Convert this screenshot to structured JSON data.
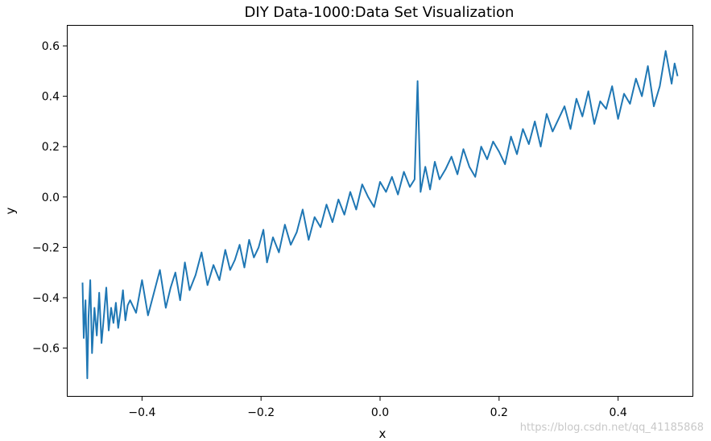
{
  "chart_data": {
    "type": "line",
    "title": "DIY Data-1000:Data Set Visualization",
    "xlabel": "x",
    "ylabel": "y",
    "xlim": [
      -0.525,
      0.525
    ],
    "ylim": [
      -0.79,
      0.68
    ],
    "x_ticks": [
      {
        "value": -0.4,
        "label": "−0.4"
      },
      {
        "value": -0.2,
        "label": "−0.2"
      },
      {
        "value": 0.0,
        "label": "0.0"
      },
      {
        "value": 0.2,
        "label": "0.2"
      },
      {
        "value": 0.4,
        "label": "0.4"
      }
    ],
    "y_ticks": [
      {
        "value": -0.6,
        "label": "−0.6"
      },
      {
        "value": -0.4,
        "label": "−0.4"
      },
      {
        "value": -0.2,
        "label": "−0.2"
      },
      {
        "value": 0.0,
        "label": "0.0"
      },
      {
        "value": 0.2,
        "label": "0.2"
      },
      {
        "value": 0.4,
        "label": "0.4"
      },
      {
        "value": 0.6,
        "label": "0.6"
      }
    ],
    "grid": false,
    "legend": "none",
    "series": [
      {
        "color": "#1f77b4",
        "x": [
          -0.5,
          -0.498,
          -0.495,
          -0.492,
          -0.49,
          -0.487,
          -0.484,
          -0.48,
          -0.476,
          -0.472,
          -0.468,
          -0.464,
          -0.46,
          -0.456,
          -0.452,
          -0.448,
          -0.444,
          -0.44,
          -0.436,
          -0.432,
          -0.428,
          -0.424,
          -0.42,
          -0.41,
          -0.4,
          -0.39,
          -0.38,
          -0.37,
          -0.36,
          -0.352,
          -0.344,
          -0.336,
          -0.328,
          -0.32,
          -0.31,
          -0.3,
          -0.29,
          -0.28,
          -0.27,
          -0.26,
          -0.252,
          -0.244,
          -0.236,
          -0.228,
          -0.22,
          -0.212,
          -0.204,
          -0.196,
          -0.19,
          -0.18,
          -0.17,
          -0.16,
          -0.15,
          -0.14,
          -0.13,
          -0.12,
          -0.11,
          -0.1,
          -0.09,
          -0.08,
          -0.07,
          -0.06,
          -0.05,
          -0.04,
          -0.03,
          -0.02,
          -0.01,
          0.0,
          0.01,
          0.02,
          0.03,
          0.04,
          0.05,
          0.058,
          0.063,
          0.068,
          0.076,
          0.084,
          0.092,
          0.1,
          0.11,
          0.12,
          0.13,
          0.14,
          0.15,
          0.16,
          0.17,
          0.18,
          0.19,
          0.2,
          0.21,
          0.22,
          0.23,
          0.24,
          0.25,
          0.26,
          0.27,
          0.28,
          0.29,
          0.3,
          0.31,
          0.32,
          0.33,
          0.34,
          0.35,
          0.36,
          0.37,
          0.38,
          0.39,
          0.4,
          0.41,
          0.42,
          0.43,
          0.44,
          0.45,
          0.46,
          0.47,
          0.48,
          0.49,
          0.495,
          0.5
        ],
        "y": [
          -0.34,
          -0.56,
          -0.41,
          -0.72,
          -0.48,
          -0.33,
          -0.62,
          -0.44,
          -0.55,
          -0.38,
          -0.58,
          -0.47,
          -0.36,
          -0.53,
          -0.44,
          -0.5,
          -0.42,
          -0.52,
          -0.45,
          -0.37,
          -0.49,
          -0.43,
          -0.41,
          -0.46,
          -0.33,
          -0.47,
          -0.38,
          -0.29,
          -0.44,
          -0.36,
          -0.3,
          -0.41,
          -0.26,
          -0.37,
          -0.31,
          -0.22,
          -0.35,
          -0.27,
          -0.33,
          -0.21,
          -0.29,
          -0.25,
          -0.19,
          -0.28,
          -0.17,
          -0.24,
          -0.2,
          -0.13,
          -0.26,
          -0.16,
          -0.22,
          -0.11,
          -0.19,
          -0.14,
          -0.05,
          -0.17,
          -0.08,
          -0.12,
          -0.03,
          -0.1,
          -0.01,
          -0.07,
          0.02,
          -0.05,
          0.05,
          0.0,
          -0.04,
          0.06,
          0.02,
          0.08,
          0.01,
          0.1,
          0.04,
          0.07,
          0.46,
          0.02,
          0.12,
          0.03,
          0.14,
          0.07,
          0.11,
          0.16,
          0.09,
          0.19,
          0.12,
          0.08,
          0.2,
          0.15,
          0.22,
          0.18,
          0.13,
          0.24,
          0.17,
          0.27,
          0.21,
          0.3,
          0.2,
          0.33,
          0.26,
          0.31,
          0.36,
          0.27,
          0.39,
          0.32,
          0.42,
          0.29,
          0.38,
          0.35,
          0.44,
          0.31,
          0.41,
          0.37,
          0.47,
          0.4,
          0.52,
          0.36,
          0.44,
          0.58,
          0.45,
          0.53,
          0.48
        ]
      }
    ]
  },
  "watermark": "https://blog.csdn.net/qq_41185868"
}
